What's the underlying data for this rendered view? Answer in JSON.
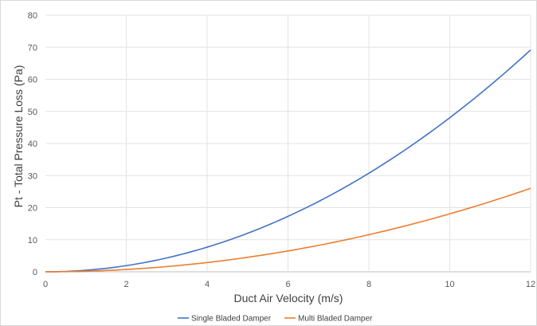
{
  "chart_data": {
    "type": "line",
    "title": "",
    "xlabel": "Duct Air Velocity (m/s)",
    "ylabel": "Pt - Total Pressure Loss (Pa)",
    "xlim": [
      0,
      12
    ],
    "ylim": [
      0,
      80
    ],
    "x_ticks": [
      "0",
      "2",
      "4",
      "6",
      "8",
      "10",
      "12"
    ],
    "y_ticks": [
      "0",
      "10",
      "20",
      "30",
      "40",
      "50",
      "60",
      "70",
      "80"
    ],
    "grid": true,
    "legend_position": "bottom",
    "x": [
      0,
      1,
      2,
      3,
      4,
      5,
      6,
      7,
      8,
      9,
      10,
      11,
      12
    ],
    "series": [
      {
        "name": "Single Bladed Damper",
        "color": "#4472C4",
        "values": [
          0,
          0.5,
          1.9,
          4.3,
          7.7,
          12.0,
          17.3,
          23.5,
          30.7,
          38.9,
          48.0,
          58.1,
          69.2
        ]
      },
      {
        "name": "Multi Bladed Damper",
        "color": "#ED7D31",
        "values": [
          0,
          0.2,
          0.7,
          1.6,
          2.9,
          4.5,
          6.5,
          8.8,
          11.6,
          14.6,
          18.1,
          21.9,
          26.0
        ]
      }
    ]
  }
}
